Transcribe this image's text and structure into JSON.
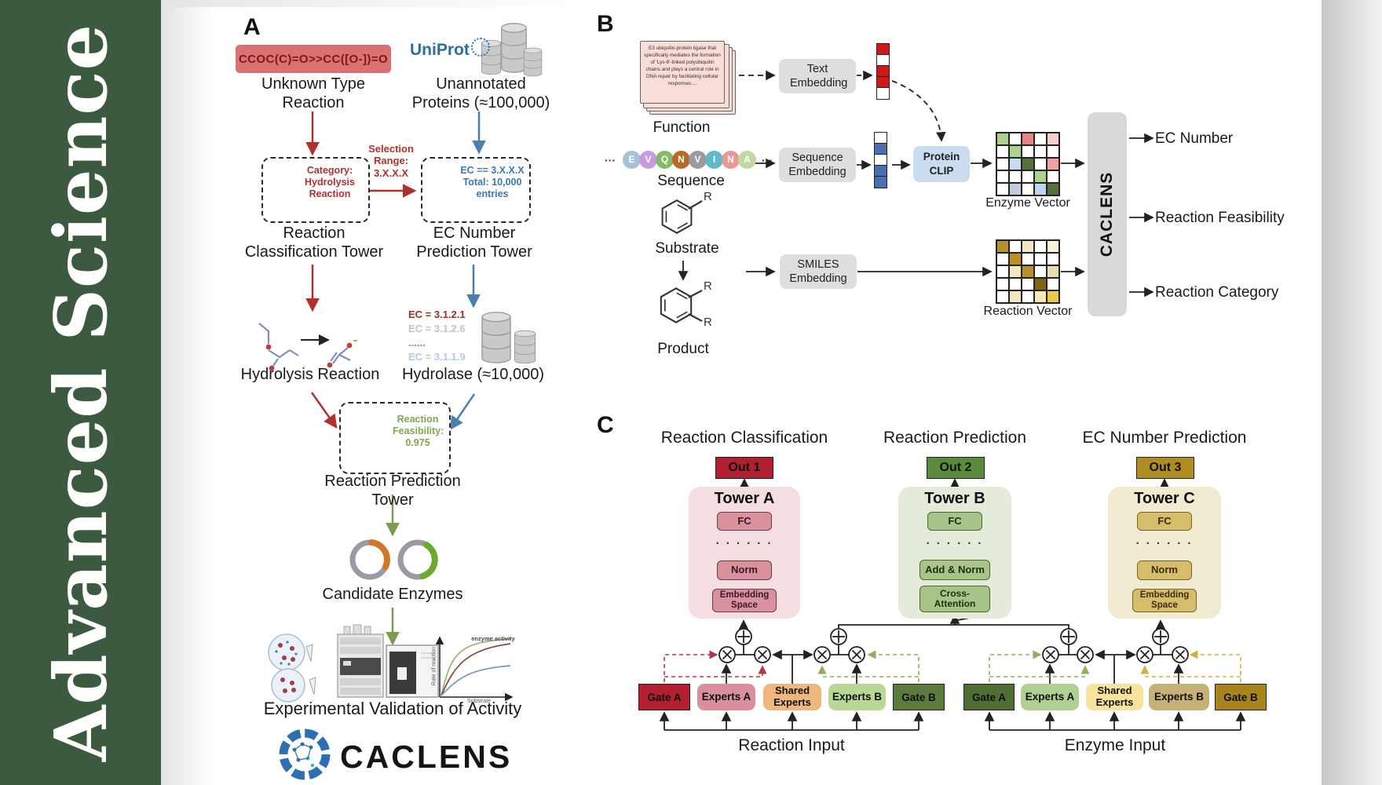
{
  "journal": {
    "name": "Advanced Science"
  },
  "panelA": {
    "label": "A",
    "smiles": "CCOC(C)=O>>CC([O-])=O",
    "unknown_lines": [
      "Unknown Type",
      "Reaction"
    ],
    "uniprot": "UniProt",
    "unannotated_lines": [
      "Unannotated",
      "Proteins (≈100,000)"
    ],
    "selection_lines": [
      "Selection",
      "Range:",
      "3.X.X.X"
    ],
    "category_lines": [
      "Category:",
      "Hydrolysis",
      "Reaction"
    ],
    "ec_box_lines": [
      "EC == 3.X.X.X",
      "Total: 10,000",
      "entries"
    ],
    "tower1_lines": [
      "Reaction",
      "Classification Tower"
    ],
    "tower2_lines": [
      "EC Number",
      "Prediction Tower"
    ],
    "ec_entries": [
      {
        "text": "EC = 3.1.2.1",
        "color": "#A22A2A",
        "weight": 700
      },
      {
        "text": "EC = 3.1.2.6",
        "color": "#C4C4C4",
        "weight": 700
      },
      {
        "text": "......",
        "color": "#8A8A8A",
        "weight": 700
      },
      {
        "text": "EC = 3.1.1.9",
        "color": "#AECBE8",
        "weight": 700
      }
    ],
    "hydrolysis_label": "Hydrolysis Reaction",
    "hydrolase_label": "Hydrolase (≈10,000)",
    "enzyme_blob": "Enzyme",
    "feasibility_lines": [
      "Reaction",
      "Feasibility:",
      "0.975"
    ],
    "tower3_label": "Reaction Prediction Tower",
    "candidates_label": "Candidate Enzymes",
    "chart": {
      "title": "enzyme activity",
      "ylabel": "Rate of reaction",
      "xlabel": "Substrate"
    },
    "validation_label": "Experimental Validation of Activity",
    "brand": "CACLENS"
  },
  "panelB": {
    "label": "B",
    "function_card_text": "E3 ubiquitin-protein ligase that specifically mediates the formation of 'Lys-6'-linked polyubiquitin chains and plays a central role in DNA repair by facilitating cellular responses....",
    "function_label": "Function",
    "ellipsis": "···",
    "sequence_letters": [
      "E",
      "V",
      "Q",
      "N",
      "V",
      "I",
      "N",
      "A"
    ],
    "sequence_colors": [
      "#A9BFD6",
      "#C79BE0",
      "#84BB66",
      "#B96A28",
      "#9A9AA0",
      "#62B8C4",
      "#E89A98",
      "#BFD9A0"
    ],
    "sequence_label": "Sequence",
    "substrate_label": "Substrate",
    "product_label": "Product",
    "r_label": "R",
    "text_embedding": "Text Embedding",
    "sequence_embedding": "Sequence Embedding",
    "smiles_embedding": "SMILES Embedding",
    "protein_clip_lines": [
      "Protein",
      "CLIP"
    ],
    "text_vector": [
      "#D01818",
      "#FFFFFF",
      "#D01818",
      "#D01818",
      "#FFFFFF"
    ],
    "sequence_vector": [
      "#FFFFFF",
      "#4A6FB0",
      "#FFFFFF",
      "#4A6FB0",
      "#4A6FB0"
    ],
    "enzyme_matrix": [
      [
        "#AED18F",
        "#FFFFFF",
        "#E58585",
        "#FFFFFF",
        "#F6CFCF"
      ],
      [
        "#FFFFFF",
        "#AED18F",
        "#FFFFFF",
        "#FFFFFF",
        "#FFFFFF"
      ],
      [
        "#FFFFFF",
        "#C9DAEE",
        "#56713B",
        "#FFFFFF",
        "#EFA3A3"
      ],
      [
        "#FFFFFF",
        "#FFFFFF",
        "#FFFFFF",
        "#AED18F",
        "#FFFFFF"
      ],
      [
        "#FFFFFF",
        "#C2CDDC",
        "#FFFFFF",
        "#BFD4EE",
        "#56713B"
      ]
    ],
    "reaction_matrix": [
      [
        "#B8912A",
        "#FFFFFF",
        "#F3E6BE",
        "#FFFFFF",
        "#FAF1DA"
      ],
      [
        "#FFFFFF",
        "#B8912A",
        "#FFFFFF",
        "#FFFFFF",
        "#FFFFFF"
      ],
      [
        "#FFFFFF",
        "#F3E6BE",
        "#B8912A",
        "#FFFFFF",
        "#E9DCB0"
      ],
      [
        "#FFFFFF",
        "#FFFFFF",
        "#FFFFFF",
        "#7E6614",
        "#FFFFFF"
      ],
      [
        "#FFFFFF",
        "#F3E6BE",
        "#FFFFFF",
        "#F6E9B8",
        "#E9C94F"
      ]
    ],
    "enzyme_vector_label": "Enzyme Vector",
    "reaction_vector_label": "Reaction Vector",
    "caclens_label": "CACLENS",
    "outputs": [
      "EC Number",
      "Reaction Feasibility",
      "Reaction Category"
    ]
  },
  "panelC": {
    "label": "C",
    "headings": [
      "Reaction Classification",
      "Reaction Prediction",
      "EC Number Prediction"
    ],
    "outs": [
      "Out 1",
      "Out 2",
      "Out 3"
    ],
    "towers": [
      {
        "name": "Tower A",
        "fc": "FC",
        "dots": "· · · · · ·",
        "mid": "Norm",
        "bottom_lines": [
          "Embedding",
          "Space"
        ]
      },
      {
        "name": "Tower B",
        "fc": "FC",
        "dots": "· · · · · ·",
        "mid": "Add & Norm",
        "bottom_lines": [
          "Cross-",
          "Attention"
        ]
      },
      {
        "name": "Tower C",
        "fc": "FC",
        "dots": "· · · · · ·",
        "mid": "Norm",
        "bottom_lines": [
          "Embedding",
          "Space"
        ]
      }
    ],
    "groups": [
      {
        "boxes": [
          "Gate A",
          "Experts A",
          "Shared Experts",
          "Experts B",
          "Gate B"
        ],
        "label": "Reaction Input"
      },
      {
        "boxes": [
          "Gate A",
          "Experts A",
          "Shared Experts",
          "Experts B",
          "Gate B"
        ],
        "label": "Enzyme Input"
      }
    ]
  },
  "palette": {
    "sidebar_green": "#3B5A40",
    "smiles_red": "#DB7272",
    "arrow_red": "#B03030",
    "arrow_blue": "#4A7FAE",
    "arrow_green": "#7A9E4E",
    "uniprot_blue": "#2E6E9E",
    "gray_box": "#DEDEDE",
    "clip_blue": "#C9DCF0",
    "out1": "#B01F30",
    "out2": "#5B8A3B",
    "out3": "#AE8C1F",
    "towerA_bg": "#F4DEE2",
    "towerB_bg": "#E4EBDA",
    "towerC_bg": "#F1EBD2",
    "gateA_red": "#B02030",
    "expertsA_pink": "#D9909C",
    "shared_orange": "#EDB77E",
    "expertsB_green": "#B9D795",
    "gateB_green": "#5B7A3B",
    "gateA2_green": "#4F6E33",
    "expertsA2_green": "#AFD092",
    "shared2_yellow": "#F7E39B",
    "expertsB2_tan": "#C5B277",
    "gateB2_gold": "#A8841C"
  }
}
